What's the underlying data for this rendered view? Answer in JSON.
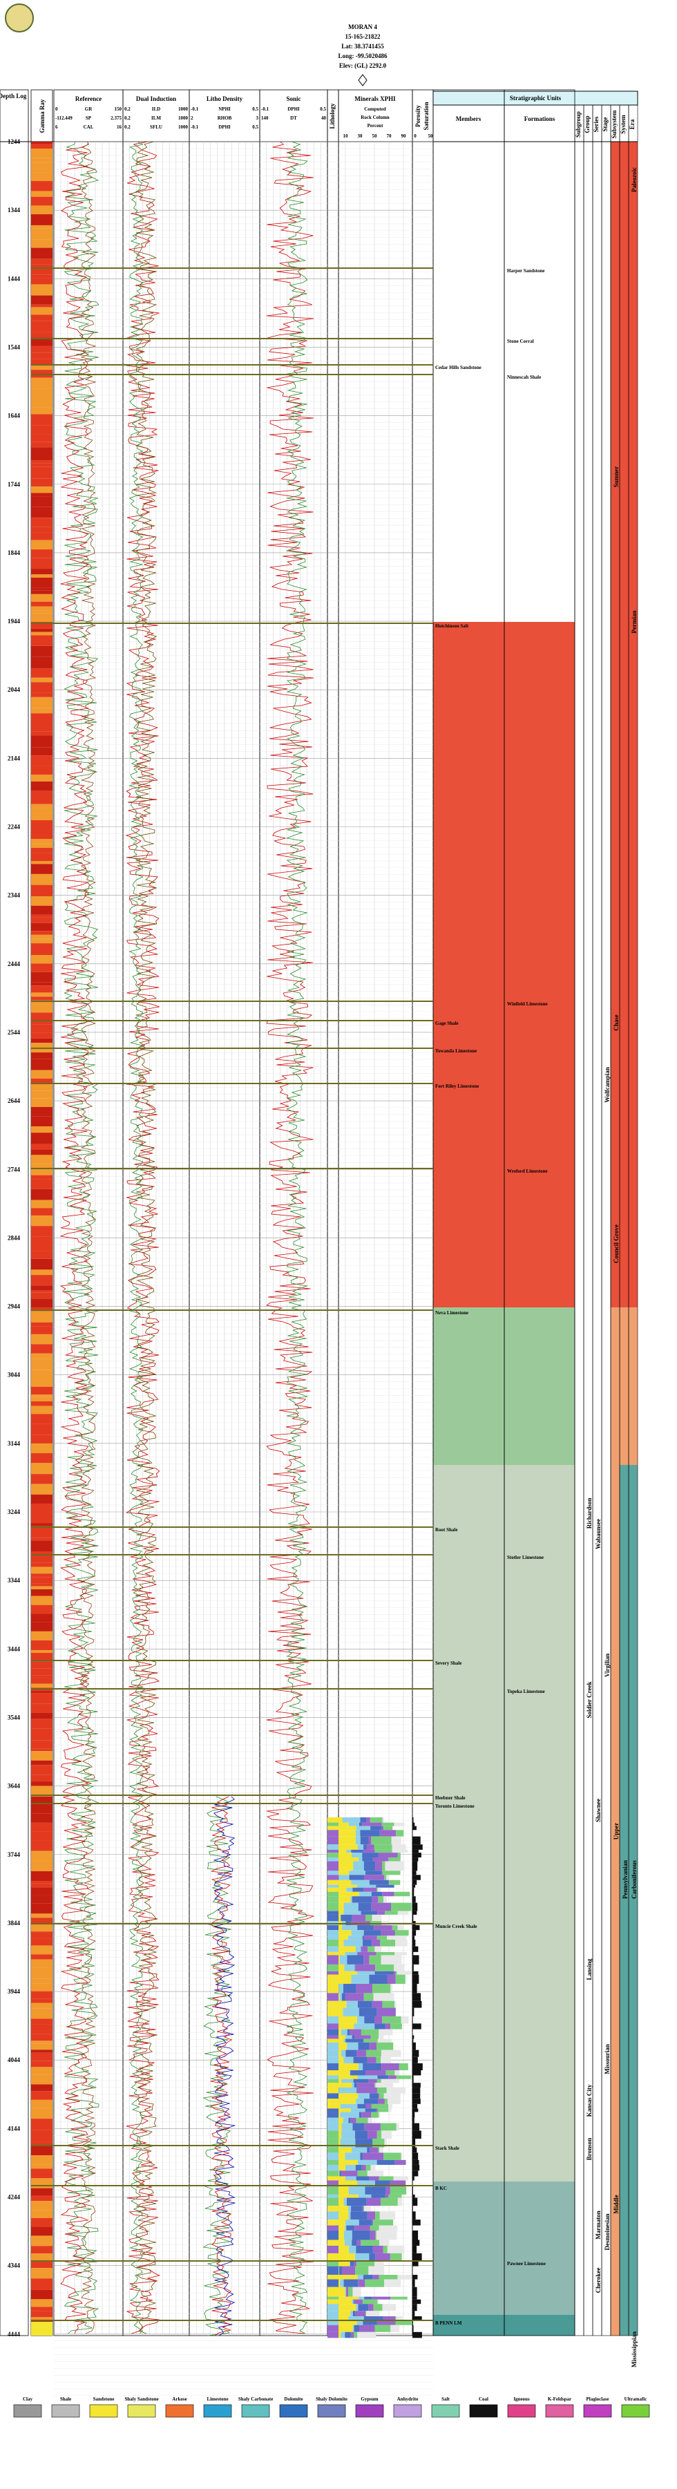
{
  "header": {
    "well": "MORAN 4",
    "api": "15-165-21822",
    "lat": "Lat: 38.3741455",
    "long": "Long: -99.5020486",
    "elev": "Elev: (GL) 2292.0"
  },
  "tracks": {
    "depth": "Depth Log",
    "gamma": "Gamma Ray",
    "reference": {
      "title": "Reference",
      "curves": [
        "GR",
        "SP",
        "CAL"
      ],
      "left": [
        "0",
        "-112.449",
        "6"
      ],
      "right": [
        "150",
        "2.375",
        "16"
      ]
    },
    "induction": {
      "title": "Dual Induction",
      "curves": [
        "ILD",
        "ILM",
        "SFLU"
      ],
      "left": [
        "0.2",
        "0.2",
        "0.2"
      ],
      "right": [
        "1000",
        "1000",
        "1000"
      ]
    },
    "density": {
      "title": "Litho Density",
      "curves": [
        "NPHI",
        "RHOB",
        "DPHI"
      ],
      "left": [
        "-0.1",
        "2",
        "-0.1"
      ],
      "right": [
        "0.5",
        "3",
        "0.5"
      ]
    },
    "sonic": {
      "title": "Sonic",
      "curves": [
        "DPHI",
        "DT"
      ],
      "left": [
        "-0.1",
        "140"
      ],
      "right": [
        "0.5",
        "40"
      ]
    },
    "lithology": "Lithology",
    "minerals": {
      "title": "Minerals XPHI",
      "sub1": "Computed",
      "sub2": "Rock Column",
      "sub3": "Percent",
      "ticks": [
        "10",
        "30",
        "50",
        "70",
        "90"
      ]
    },
    "porosity": "Porosity",
    "porticks": [
      "0",
      "50"
    ],
    "saturation": "Saturation"
  },
  "depths": [
    "1244",
    "1344",
    "1444",
    "1544",
    "1644",
    "1744",
    "1844",
    "1944",
    "2044",
    "2144",
    "2244",
    "2344",
    "2444",
    "2544",
    "2644",
    "2744",
    "2844",
    "2944",
    "3044",
    "3144",
    "3244",
    "3344",
    "3444",
    "3544",
    "3644",
    "3744",
    "3844",
    "3944",
    "4044",
    "4144",
    "4244",
    "4344",
    "4444"
  ],
  "strat": {
    "title": "Stratigraphic Units",
    "members_head": "Members",
    "formations_head": "Formations",
    "col_heads": [
      "Subgroup",
      "Group",
      "Series",
      "Stage",
      "Subsystem",
      "System",
      "Era"
    ],
    "tops": [
      "Harper Sandstone",
      "Stone Corral",
      "Cedar Hills Sandstone",
      "Ninnescah Shale",
      "Hutchinson Salt",
      "Winfield Limestone",
      "Gage Shale",
      "Towanda Limestone",
      "Fort Riley Limestone",
      "Wreford Limestone",
      "Neva Limestone",
      "Root Shale",
      "Stotler Limestone",
      "Severy Shale",
      "Topeka Limestone",
      "Heebner Shale",
      "Toronto Limestone",
      "Muncie Creek Shale",
      "Stark Shale",
      "B KC",
      "Pawnee Limestone",
      "B PENN LM"
    ],
    "units": [
      "Sumner",
      "Chase",
      "Council Grove",
      "Richardson",
      "Wabaunsee",
      "Shawnee",
      "Soldier Creek",
      "Lansing",
      "Kansas City",
      "Bronson",
      "Marmaton",
      "Cherokee",
      "Wolfcampian",
      "Virgilian",
      "Missourian",
      "Desmoinesian",
      "Upper",
      "Middle",
      "Pennsylvanian",
      "Carboniferous",
      "Mississippian",
      "Permian",
      "Paleozoic"
    ]
  },
  "legend": [
    "Clay",
    "Shale",
    "Sandstone",
    "Shaly Sandstone",
    "Arkose",
    "Limestone",
    "Shaly Carbonate",
    "Dolomite",
    "Shaly Dolomite",
    "Gypsum",
    "Anhydrite",
    "Salt",
    "Coal",
    "Igneous",
    "K-Feldspar",
    "Plagioclase",
    "Ultramafic"
  ]
}
